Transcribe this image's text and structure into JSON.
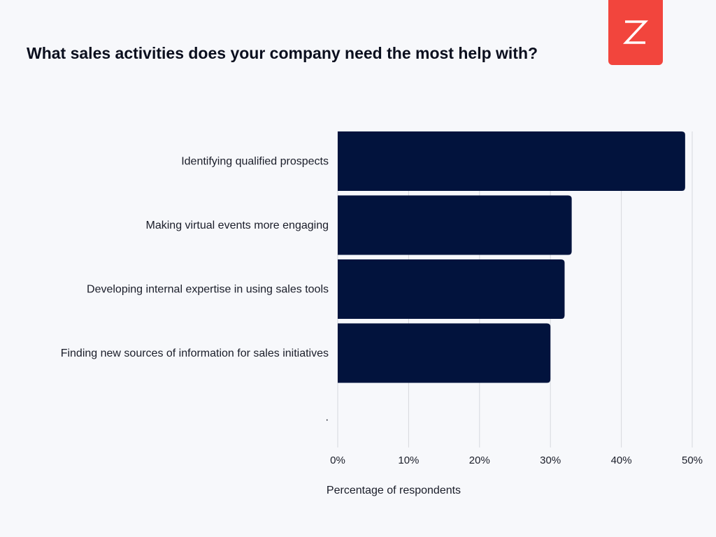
{
  "brand": {
    "logo_icon": "zendesk-z-logo-icon",
    "color": "#f2453d"
  },
  "chart_data": {
    "type": "bar",
    "orientation": "horizontal",
    "title": "What sales activities does your company need the most help with?",
    "xlabel": "Percentage of respondents",
    "ylabel": "",
    "categories": [
      "Identifying qualified prospects",
      "Making virtual events more engaging",
      "Developing internal expertise in using sales tools",
      "Finding new sources of information for sales initiatives",
      "."
    ],
    "values": [
      49,
      33,
      32,
      30,
      0
    ],
    "xlim": [
      0,
      50
    ],
    "xticks": [
      "0%",
      "10%",
      "20%",
      "30%",
      "40%",
      "50%"
    ],
    "tick_values": [
      0,
      10,
      20,
      30,
      40,
      50
    ],
    "bar_color": "#02133d",
    "grid": true,
    "legend": "none"
  }
}
